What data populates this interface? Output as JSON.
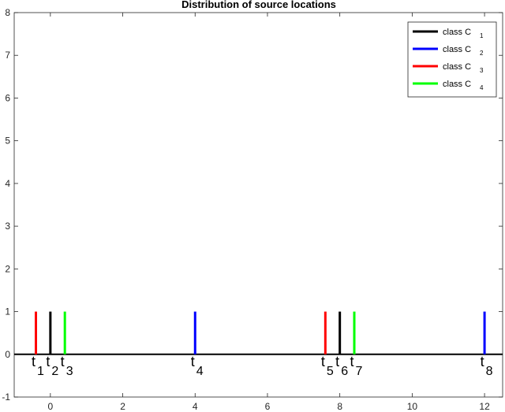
{
  "chart_data": {
    "type": "stem",
    "title": "Distribution of source locations",
    "xlim": [
      -1,
      12.5
    ],
    "ylim": [
      -1,
      8
    ],
    "xticks": [
      0,
      2,
      4,
      6,
      8,
      10,
      12
    ],
    "yticks": [
      -1,
      0,
      1,
      2,
      3,
      4,
      5,
      6,
      7,
      8
    ],
    "grid": false,
    "legend_position": "top-right",
    "series": [
      {
        "name": "class C",
        "sub": "1",
        "color": "#000000",
        "x": [
          0,
          8
        ],
        "y": [
          1,
          1
        ]
      },
      {
        "name": "class C",
        "sub": "2",
        "color": "#0000ff",
        "x": [
          4,
          12
        ],
        "y": [
          1,
          1
        ]
      },
      {
        "name": "class C",
        "sub": "3",
        "color": "#ff0000",
        "x": [
          -0.4,
          7.6
        ],
        "y": [
          1,
          1
        ]
      },
      {
        "name": "class C",
        "sub": "4",
        "color": "#00ff00",
        "x": [
          0.4,
          8.4
        ],
        "y": [
          1,
          1
        ]
      }
    ],
    "annotations": [
      {
        "text": "t",
        "sub": "1",
        "x": -0.4
      },
      {
        "text": "t",
        "sub": "2",
        "x": 0
      },
      {
        "text": "t",
        "sub": "3",
        "x": 0.4
      },
      {
        "text": "t",
        "sub": "4",
        "x": 4
      },
      {
        "text": "t",
        "sub": "5",
        "x": 7.6
      },
      {
        "text": "t",
        "sub": "6",
        "x": 8
      },
      {
        "text": "t",
        "sub": "7",
        "x": 8.4
      },
      {
        "text": "t",
        "sub": "8",
        "x": 12
      }
    ]
  }
}
